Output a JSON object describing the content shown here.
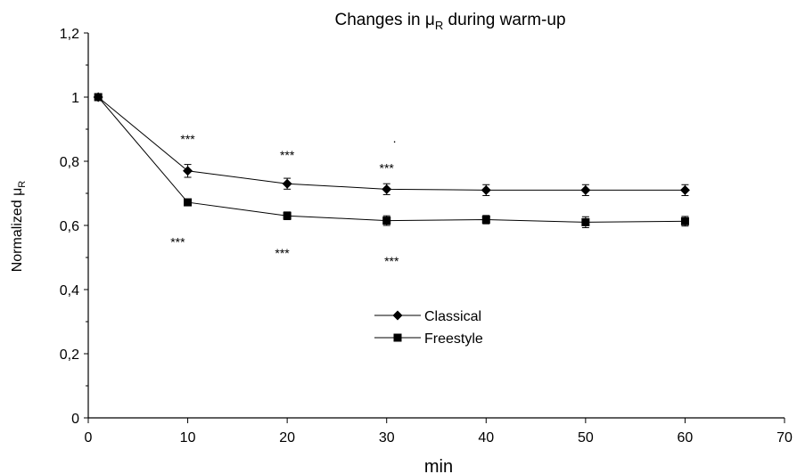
{
  "chart_data": {
    "type": "line",
    "title": {
      "main": "Changes in μ",
      "sub": "R",
      "suffix": " during warm-up"
    },
    "xlabel": "min",
    "ylabel": {
      "main": "Normalized  μ",
      "sub": "R"
    },
    "xlim": [
      0,
      70
    ],
    "ylim": [
      0,
      1.2
    ],
    "x_ticks": [
      {
        "value": 0,
        "label": "0"
      },
      {
        "value": 10,
        "label": "10"
      },
      {
        "value": 20,
        "label": "20"
      },
      {
        "value": 30,
        "label": "30"
      },
      {
        "value": 40,
        "label": "40"
      },
      {
        "value": 50,
        "label": "50"
      },
      {
        "value": 60,
        "label": "60"
      },
      {
        "value": 70,
        "label": "70"
      }
    ],
    "y_ticks": [
      {
        "value": 0,
        "label": "0"
      },
      {
        "value": 0.2,
        "label": "0,2"
      },
      {
        "value": 0.4,
        "label": "0,4"
      },
      {
        "value": 0.6,
        "label": "0,6"
      },
      {
        "value": 0.8,
        "label": "0,8"
      },
      {
        "value": 1.0,
        "label": "1"
      },
      {
        "value": 1.2,
        "label": "1,2"
      }
    ],
    "grid": false,
    "legend_position": "center",
    "series": [
      {
        "name": "Classical",
        "marker": "diamond",
        "x": [
          1,
          10,
          20,
          30,
          40,
          50,
          60
        ],
        "y": [
          1.0,
          0.77,
          0.73,
          0.713,
          0.71,
          0.71,
          0.71
        ],
        "error": [
          0.005,
          0.02,
          0.017,
          0.017,
          0.017,
          0.017,
          0.017
        ]
      },
      {
        "name": "Freestyle",
        "marker": "square",
        "x": [
          1,
          10,
          20,
          30,
          40,
          50,
          60
        ],
        "y": [
          1.0,
          0.672,
          0.63,
          0.615,
          0.618,
          0.61,
          0.613
        ],
        "error": [
          0.005,
          0.01,
          0.012,
          0.015,
          0.013,
          0.017,
          0.015
        ]
      }
    ],
    "annotations": [
      {
        "text": "***",
        "x": 10,
        "y": 0.855
      },
      {
        "text": "***",
        "x": 20,
        "y": 0.805
      },
      {
        "text": "***",
        "x": 30,
        "y": 0.765
      },
      {
        "text": "·",
        "x": 30.8,
        "y": 0.85
      },
      {
        "text": "***",
        "x": 9,
        "y": 0.535
      },
      {
        "text": "***",
        "x": 19.5,
        "y": 0.5
      },
      {
        "text": "***",
        "x": 30.5,
        "y": 0.475
      }
    ]
  }
}
